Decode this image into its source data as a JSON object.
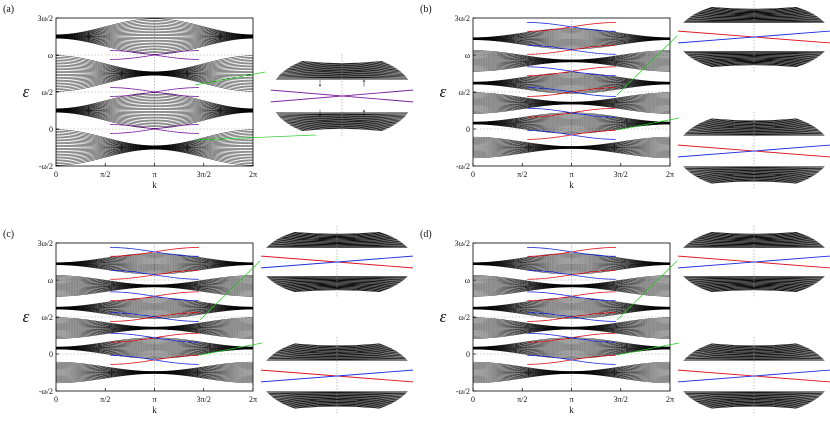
{
  "chart_data": [
    {
      "panel": "(a)",
      "type": "line",
      "xlabel": "k",
      "ylabel": "ε",
      "x_tick_labels": [
        "0",
        "π/2",
        "π",
        "3π/2",
        "2π"
      ],
      "y_tick_labels": [
        "-ω/2",
        "0",
        "ω/2",
        "ω",
        "3ω/2"
      ],
      "xlim": [
        "0",
        "2π"
      ],
      "ylim": [
        "-ω/2",
        "3ω/2"
      ],
      "band_count": 24,
      "edge_state_colors": [
        "#7a1fa0"
      ],
      "insets": [
        {
          "arrows": [
            "↓",
            "↑",
            "↓",
            "↑"
          ],
          "arrow_colors": [
            "#d22",
            "#d22",
            "#22c",
            "#22c"
          ]
        }
      ]
    },
    {
      "panel": "(b)",
      "type": "line",
      "xlabel": "k",
      "ylabel": "ε",
      "x_tick_labels": [
        "0",
        "π/2",
        "π",
        "3π/2",
        "2π"
      ],
      "y_tick_labels": [
        "-ω/2",
        "0",
        "ω/2",
        "ω",
        "3ω/2"
      ],
      "xlim": [
        "0",
        "2π"
      ],
      "ylim": [
        "-ω/2",
        "3ω/2"
      ],
      "edge_state_colors": [
        "#e0141e",
        "#1e2ee0"
      ],
      "insets": [
        {},
        {}
      ]
    },
    {
      "panel": "(c)",
      "type": "line",
      "xlabel": "k",
      "ylabel": "ε",
      "x_tick_labels": [
        "0",
        "π/2",
        "π",
        "3π/2",
        "2π"
      ],
      "y_tick_labels": [
        "-ω/2",
        "0",
        "ω/2",
        "ω",
        "3ω/2"
      ],
      "xlim": [
        "0",
        "2π"
      ],
      "ylim": [
        "-ω/2",
        "3ω/2"
      ],
      "edge_state_colors": [
        "#e0141e",
        "#1e2ee0"
      ],
      "insets": [
        {},
        {}
      ]
    },
    {
      "panel": "(d)",
      "type": "line",
      "xlabel": "k",
      "ylabel": "ε",
      "x_tick_labels": [
        "0",
        "π/2",
        "π",
        "3π/2",
        "2π"
      ],
      "y_tick_labels": [
        "-ω/2",
        "0",
        "ω/2",
        "ω",
        "3ω/2"
      ],
      "xlim": [
        "0",
        "2π"
      ],
      "ylim": [
        "-ω/2",
        "3ω/2"
      ],
      "edge_state_colors": [
        "#e0141e",
        "#1e2ee0"
      ],
      "insets": [
        {},
        {}
      ]
    }
  ],
  "colors": {
    "band": "#000000",
    "zoom_line": "#22cc22",
    "grid": "#9a9a9a"
  }
}
